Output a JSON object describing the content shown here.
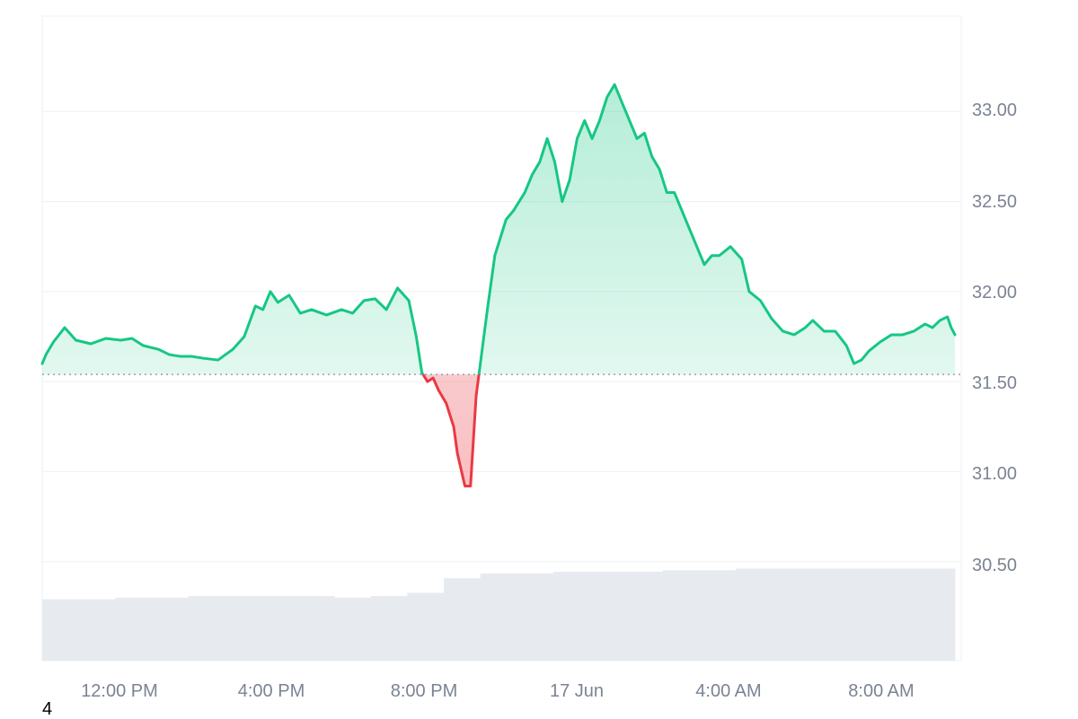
{
  "chart_data": {
    "type": "area",
    "ylim": [
      29.95,
      33.53
    ],
    "y_ticks": [
      "33.00",
      "32.50",
      "32.00",
      "31.50",
      "31.00",
      "30.50"
    ],
    "x_tick_labels": [
      "12:00 PM",
      "4:00 PM",
      "8:00 PM",
      "17 Jun",
      "4:00 AM",
      "8:00 AM"
    ],
    "x_tick_hours": [
      12,
      16,
      20,
      24,
      28,
      32
    ],
    "baseline": 31.54,
    "grid": true,
    "colors": {
      "up": "#16c784",
      "down": "#ea3943",
      "grid": "#eef0f3",
      "volume": "#e7ebf0",
      "baseline": "#8a8f98"
    },
    "x": [
      9.9,
      10.0,
      10.2,
      10.5,
      10.8,
      11.0,
      11.2,
      11.6,
      12.0,
      12.3,
      12.6,
      13.0,
      13.3,
      13.6,
      13.9,
      14.2,
      14.6,
      15.0,
      15.3,
      15.6,
      15.8,
      16.0,
      16.2,
      16.5,
      16.8,
      17.1,
      17.5,
      17.9,
      18.2,
      18.5,
      18.8,
      19.1,
      19.4,
      19.7,
      19.9,
      20.05,
      20.2,
      20.35,
      20.5,
      20.7,
      20.9,
      21.0,
      21.2,
      21.35,
      21.5,
      21.8,
      22.0,
      22.3,
      22.5,
      22.8,
      23.0,
      23.2,
      23.4,
      23.6,
      23.8,
      24.0,
      24.2,
      24.4,
      24.6,
      24.8,
      25.0,
      25.2,
      25.4,
      25.6,
      25.8,
      26.0,
      26.2,
      26.4,
      26.6,
      26.8,
      27.0,
      27.3,
      27.6,
      27.8,
      28.0,
      28.3,
      28.6,
      28.8,
      29.1,
      29.4,
      29.7,
      30.0,
      30.3,
      30.5,
      30.8,
      31.1,
      31.4,
      31.6,
      31.8,
      32.0,
      32.3,
      32.6,
      32.9,
      33.2,
      33.5,
      33.7,
      33.9,
      34.1,
      34.2,
      34.3
    ],
    "y": [
      31.6,
      31.65,
      31.72,
      31.8,
      31.73,
      31.72,
      31.71,
      31.74,
      31.73,
      31.74,
      31.7,
      31.68,
      31.65,
      31.64,
      31.64,
      31.63,
      31.62,
      31.68,
      31.75,
      31.92,
      31.9,
      32.0,
      31.94,
      31.98,
      31.88,
      31.9,
      31.87,
      31.9,
      31.88,
      31.95,
      31.96,
      31.9,
      32.02,
      31.95,
      31.75,
      31.55,
      31.5,
      31.52,
      31.45,
      31.38,
      31.25,
      31.1,
      30.92,
      30.92,
      31.42,
      31.9,
      32.2,
      32.4,
      32.45,
      32.55,
      32.65,
      32.72,
      32.85,
      32.72,
      32.5,
      32.62,
      32.85,
      32.95,
      32.85,
      32.95,
      33.08,
      33.15,
      33.05,
      32.95,
      32.85,
      32.88,
      32.75,
      32.68,
      32.55,
      32.55,
      32.45,
      32.3,
      32.15,
      32.2,
      32.2,
      32.25,
      32.18,
      32.0,
      31.95,
      31.85,
      31.78,
      31.76,
      31.8,
      31.84,
      31.78,
      31.78,
      31.7,
      31.6,
      31.62,
      31.67,
      31.72,
      31.76,
      31.76,
      31.78,
      31.82,
      31.8,
      31.84,
      31.86,
      31.8,
      31.76
    ],
    "volume_relative": [
      0.38,
      0.38,
      0.39,
      0.39,
      0.4,
      0.4,
      0.4,
      0.4,
      0.39,
      0.4,
      0.42,
      0.51,
      0.54,
      0.54,
      0.55,
      0.55,
      0.55,
      0.56,
      0.56,
      0.57,
      0.57,
      0.57,
      0.57,
      0.57,
      0.57
    ]
  },
  "footer": {
    "note": "4"
  }
}
